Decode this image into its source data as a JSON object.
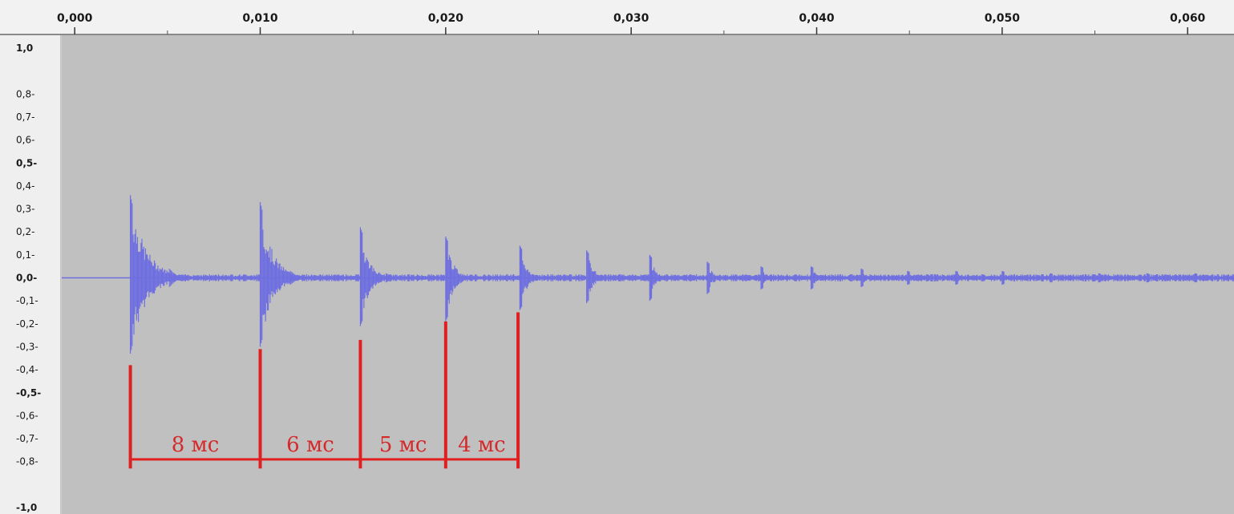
{
  "chart_data": {
    "type": "line",
    "title": "",
    "xlabel": "",
    "ylabel": "",
    "xlim": [
      -0.0007,
      0.0625
    ],
    "ylim": [
      -1.0,
      1.0
    ],
    "x_ticks": [
      {
        "value": 0.0,
        "label": "0,000"
      },
      {
        "value": 0.01,
        "label": "0,010"
      },
      {
        "value": 0.02,
        "label": "0,020"
      },
      {
        "value": 0.03,
        "label": "0,030"
      },
      {
        "value": 0.04,
        "label": "0,040"
      },
      {
        "value": 0.05,
        "label": "0,050"
      },
      {
        "value": 0.06,
        "label": "0,060"
      }
    ],
    "y_ticks": [
      {
        "value": 1.0,
        "label": "1,0",
        "major": true
      },
      {
        "value": 0.8,
        "label": "0,8-",
        "major": false
      },
      {
        "value": 0.7,
        "label": "0,7-",
        "major": false
      },
      {
        "value": 0.6,
        "label": "0,6-",
        "major": false
      },
      {
        "value": 0.5,
        "label": "0,5-",
        "major": true
      },
      {
        "value": 0.4,
        "label": "0,4-",
        "major": false
      },
      {
        "value": 0.3,
        "label": "0,3-",
        "major": false
      },
      {
        "value": 0.2,
        "label": "0,2-",
        "major": false
      },
      {
        "value": 0.1,
        "label": "0,1-",
        "major": false
      },
      {
        "value": 0.0,
        "label": "0,0-",
        "major": true
      },
      {
        "value": -0.1,
        "label": "-0,1-",
        "major": false
      },
      {
        "value": -0.2,
        "label": "-0,2-",
        "major": false
      },
      {
        "value": -0.3,
        "label": "-0,3-",
        "major": false
      },
      {
        "value": -0.4,
        "label": "-0,4-",
        "major": false
      },
      {
        "value": -0.5,
        "label": "-0,5-",
        "major": true
      },
      {
        "value": -0.6,
        "label": "-0,6-",
        "major": false
      },
      {
        "value": -0.7,
        "label": "-0,7-",
        "major": false
      },
      {
        "value": -0.8,
        "label": "-0,8-",
        "major": false
      },
      {
        "value": -1.0,
        "label": "-1,0",
        "major": true
      }
    ],
    "series": [
      {
        "name": "",
        "color": "#6f6fe0",
        "impulses": [
          {
            "t": 0.003,
            "max": 0.36,
            "min": -0.33
          },
          {
            "t": 0.01,
            "max": 0.33,
            "min": -0.3
          },
          {
            "t": 0.0154,
            "max": 0.22,
            "min": -0.21
          },
          {
            "t": 0.02,
            "max": 0.18,
            "min": -0.19
          },
          {
            "t": 0.024,
            "max": 0.14,
            "min": -0.14
          },
          {
            "t": 0.0276,
            "max": 0.12,
            "min": -0.11
          },
          {
            "t": 0.031,
            "max": 0.1,
            "min": -0.1
          },
          {
            "t": 0.0341,
            "max": 0.07,
            "min": -0.07
          },
          {
            "t": 0.037,
            "max": 0.05,
            "min": -0.05
          },
          {
            "t": 0.0397,
            "max": 0.05,
            "min": -0.05
          },
          {
            "t": 0.0424,
            "max": 0.04,
            "min": -0.04
          },
          {
            "t": 0.0449,
            "max": 0.03,
            "min": -0.03
          },
          {
            "t": 0.0475,
            "max": 0.03,
            "min": -0.03
          },
          {
            "t": 0.05,
            "max": 0.03,
            "min": -0.03
          },
          {
            "t": 0.0526,
            "max": 0.02,
            "min": -0.02
          },
          {
            "t": 0.0552,
            "max": 0.02,
            "min": -0.02
          },
          {
            "t": 0.0578,
            "max": 0.02,
            "min": -0.02
          },
          {
            "t": 0.0604,
            "max": 0.02,
            "min": -0.02
          }
        ]
      }
    ],
    "annotations": {
      "color": "#e02020",
      "markers": [
        {
          "t": 0.003,
          "y_top": -0.38
        },
        {
          "t": 0.01,
          "y_top": -0.31
        },
        {
          "t": 0.0154,
          "y_top": -0.27
        },
        {
          "t": 0.02,
          "y_top": -0.19
        },
        {
          "t": 0.0239,
          "y_top": -0.15
        }
      ],
      "bracket_y": -0.79,
      "bracket_bottom_y": -0.83,
      "intervals": [
        {
          "from": 0.003,
          "to": 0.01,
          "label": "8 мс"
        },
        {
          "from": 0.01,
          "to": 0.0154,
          "label": "6 мс"
        },
        {
          "from": 0.0154,
          "to": 0.02,
          "label": "5 мс"
        },
        {
          "from": 0.02,
          "to": 0.0239,
          "label": "4 мс"
        }
      ]
    },
    "grid": false,
    "legend": "none"
  },
  "colors": {
    "plot_background": "#c0c0c0",
    "ruler_background": "#f0f0f0",
    "waveform": "#6f6fe0",
    "annotation": "#e02020"
  }
}
